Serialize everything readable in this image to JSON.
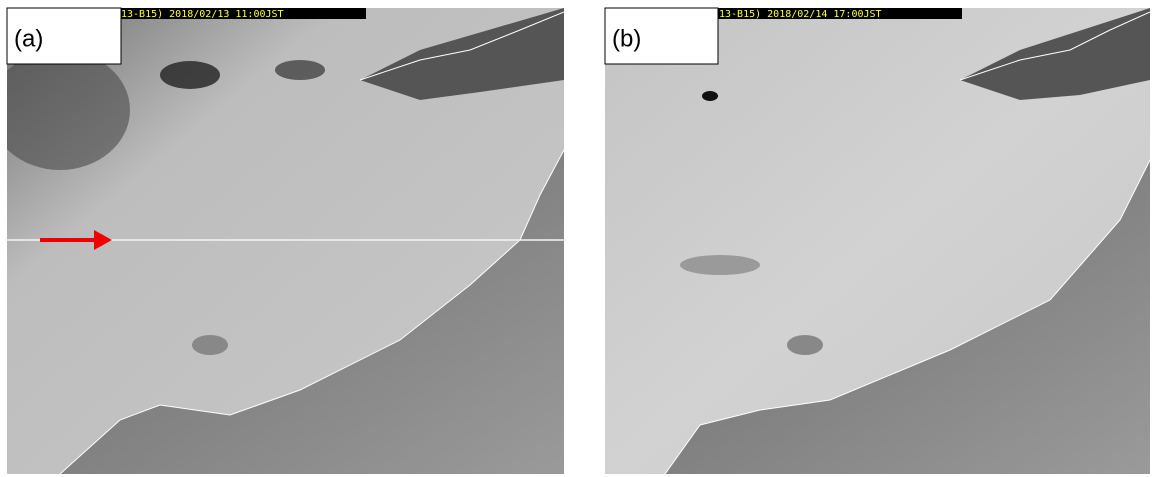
{
  "panels": [
    {
      "label": "(a)",
      "timestamp": "13-B15) 2018/02/13 11:00JST"
    },
    {
      "label": "(b)",
      "timestamp": "13-B15) 2018/02/14 17:00JST"
    }
  ]
}
